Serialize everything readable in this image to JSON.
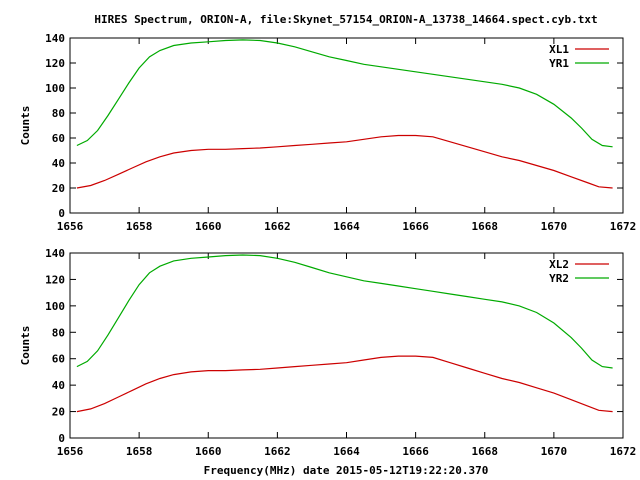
{
  "title": "HIRES Spectrum, ORION-A, file:Skynet_57154_ORION-A_13738_14664.spect.cyb.txt",
  "colors": {
    "red": "#cc0000",
    "green": "#00aa00",
    "axis": "#000000"
  },
  "chart_data": [
    {
      "type": "line",
      "title": "HIRES Spectrum, ORION-A, file:Skynet_57154_ORION-A_13738_14664.spect.cyb.txt",
      "xlabel": "",
      "ylabel": "Counts",
      "xlim": [
        1656,
        1672
      ],
      "ylim": [
        0,
        140
      ],
      "xticks": [
        1656,
        1658,
        1660,
        1662,
        1664,
        1666,
        1668,
        1670,
        1672
      ],
      "yticks": [
        0,
        20,
        40,
        60,
        80,
        100,
        120,
        140
      ],
      "legend": "top-right",
      "grid": false,
      "series": [
        {
          "name": "XL1",
          "color": "#cc0000",
          "x": [
            1656.2,
            1656.6,
            1657.0,
            1657.4,
            1657.8,
            1658.2,
            1658.6,
            1659.0,
            1659.5,
            1660.0,
            1660.5,
            1661.0,
            1661.5,
            1662.0,
            1662.5,
            1663.0,
            1663.5,
            1664.0,
            1664.5,
            1665.0,
            1665.5,
            1666.0,
            1666.5,
            1667.0,
            1667.5,
            1668.0,
            1668.5,
            1669.0,
            1669.5,
            1670.0,
            1670.5,
            1671.0,
            1671.3,
            1671.7
          ],
          "y": [
            20,
            22,
            26,
            31,
            36,
            41,
            45,
            48,
            50,
            51,
            51,
            51.5,
            52,
            53,
            54,
            55,
            56,
            57,
            59,
            61,
            62,
            62,
            61,
            57,
            53,
            49,
            45,
            42,
            38,
            34,
            29,
            24,
            21,
            20
          ]
        },
        {
          "name": "YR1",
          "color": "#00aa00",
          "x": [
            1656.2,
            1656.5,
            1656.8,
            1657.1,
            1657.4,
            1657.7,
            1658.0,
            1658.3,
            1658.6,
            1659.0,
            1659.5,
            1660.0,
            1660.5,
            1661.0,
            1661.5,
            1662.0,
            1662.5,
            1663.0,
            1663.5,
            1664.0,
            1664.5,
            1665.0,
            1665.5,
            1666.0,
            1666.5,
            1667.0,
            1667.5,
            1668.0,
            1668.5,
            1669.0,
            1669.5,
            1670.0,
            1670.5,
            1670.8,
            1671.1,
            1671.4,
            1671.7
          ],
          "y": [
            54,
            58,
            66,
            78,
            91,
            104,
            116,
            125,
            130,
            134,
            136,
            137,
            138,
            138.5,
            138,
            136,
            133,
            129,
            125,
            122,
            119,
            117,
            115,
            113,
            111,
            109,
            107,
            105,
            103,
            100,
            95,
            87,
            76,
            68,
            59,
            54,
            53
          ]
        }
      ]
    },
    {
      "type": "line",
      "title": "",
      "xlabel": "Frequency(MHz) date 2015-05-12T19:22:20.370",
      "ylabel": "Counts",
      "xlim": [
        1656,
        1672
      ],
      "ylim": [
        0,
        140
      ],
      "xticks": [
        1656,
        1658,
        1660,
        1662,
        1664,
        1666,
        1668,
        1670,
        1672
      ],
      "yticks": [
        0,
        20,
        40,
        60,
        80,
        100,
        120,
        140
      ],
      "legend": "top-right",
      "grid": false,
      "series": [
        {
          "name": "XL2",
          "color": "#cc0000",
          "x": [
            1656.2,
            1656.6,
            1657.0,
            1657.4,
            1657.8,
            1658.2,
            1658.6,
            1659.0,
            1659.5,
            1660.0,
            1660.5,
            1661.0,
            1661.5,
            1662.0,
            1662.5,
            1663.0,
            1663.5,
            1664.0,
            1664.5,
            1665.0,
            1665.5,
            1666.0,
            1666.5,
            1667.0,
            1667.5,
            1668.0,
            1668.5,
            1669.0,
            1669.5,
            1670.0,
            1670.5,
            1671.0,
            1671.3,
            1671.7
          ],
          "y": [
            20,
            22,
            26,
            31,
            36,
            41,
            45,
            48,
            50,
            51,
            51,
            51.5,
            52,
            53,
            54,
            55,
            56,
            57,
            59,
            61,
            62,
            62,
            61,
            57,
            53,
            49,
            45,
            42,
            38,
            34,
            29,
            24,
            21,
            20
          ]
        },
        {
          "name": "YR2",
          "color": "#00aa00",
          "x": [
            1656.2,
            1656.5,
            1656.8,
            1657.1,
            1657.4,
            1657.7,
            1658.0,
            1658.3,
            1658.6,
            1659.0,
            1659.5,
            1660.0,
            1660.5,
            1661.0,
            1661.5,
            1662.0,
            1662.5,
            1663.0,
            1663.5,
            1664.0,
            1664.5,
            1665.0,
            1665.5,
            1666.0,
            1666.5,
            1667.0,
            1667.5,
            1668.0,
            1668.5,
            1669.0,
            1669.5,
            1670.0,
            1670.5,
            1670.8,
            1671.1,
            1671.4,
            1671.7
          ],
          "y": [
            54,
            58,
            66,
            78,
            91,
            104,
            116,
            125,
            130,
            134,
            136,
            137,
            138,
            138.5,
            138,
            136,
            133,
            129,
            125,
            122,
            119,
            117,
            115,
            113,
            111,
            109,
            107,
            105,
            103,
            100,
            95,
            87,
            76,
            68,
            59,
            54,
            53
          ]
        }
      ]
    }
  ]
}
